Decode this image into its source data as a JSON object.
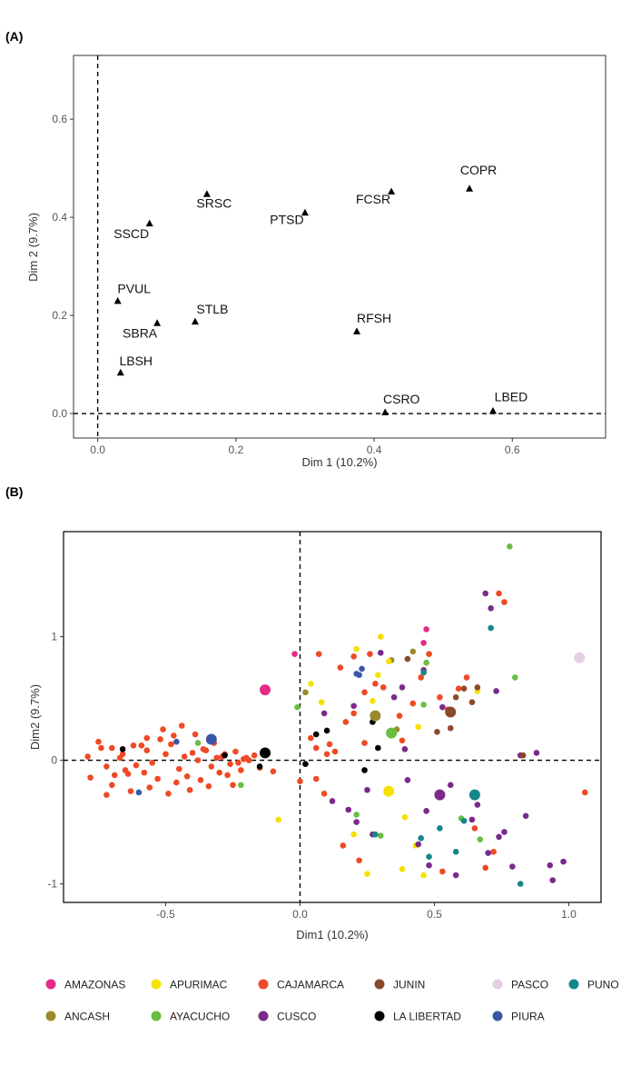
{
  "chart_data": [
    {
      "type": "scatter",
      "panel_label": "(A)",
      "xlabel": "Dim 1 (10.2%)",
      "ylabel": "Dim 2 (9.7%)",
      "xlim": [
        -0.035,
        0.735
      ],
      "ylim": [
        -0.05,
        0.73
      ],
      "xticks": [
        0.0,
        0.2,
        0.4,
        0.6
      ],
      "xtick_labels": [
        "0.0",
        "0.2",
        "0.4",
        "0.6"
      ],
      "yticks": [
        0.0,
        0.2,
        0.4,
        0.6
      ],
      "ytick_labels": [
        "0.0",
        "0.2",
        "0.4",
        "0.6"
      ],
      "reference_lines": {
        "x": 0,
        "y": 0
      },
      "marker": "triangle",
      "points": [
        {
          "label": "COPR",
          "x": 0.538,
          "y": 0.458
        },
        {
          "label": "FCSR",
          "x": 0.425,
          "y": 0.452
        },
        {
          "label": "SRSC",
          "x": 0.158,
          "y": 0.447
        },
        {
          "label": "PTSD",
          "x": 0.3,
          "y": 0.409
        },
        {
          "label": "SSCD",
          "x": 0.075,
          "y": 0.387
        },
        {
          "label": "PVUL",
          "x": 0.029,
          "y": 0.229
        },
        {
          "label": "STLB",
          "x": 0.141,
          "y": 0.187
        },
        {
          "label": "SBRA",
          "x": 0.086,
          "y": 0.184
        },
        {
          "label": "RFSH",
          "x": 0.375,
          "y": 0.167
        },
        {
          "label": "LBSH",
          "x": 0.033,
          "y": 0.083
        },
        {
          "label": "CSRO",
          "x": 0.416,
          "y": 0.002
        },
        {
          "label": "LBED",
          "x": 0.572,
          "y": 0.005
        }
      ]
    },
    {
      "type": "scatter",
      "panel_label": "(B)",
      "xlabel": "Dim1 (10.2%)",
      "ylabel": "Dim2 (9.7%)",
      "xlim": [
        -0.88,
        1.12
      ],
      "ylim": [
        -1.15,
        1.85
      ],
      "xticks": [
        -0.5,
        0.0,
        0.5,
        1.0
      ],
      "xtick_labels": [
        "-0.5",
        "0.0",
        "0.5",
        "1.0"
      ],
      "yticks": [
        -1,
        0,
        1
      ],
      "ytick_labels": [
        "-1",
        "0",
        "1"
      ],
      "reference_lines": {
        "x": 0,
        "y": 0
      },
      "legend_position": "bottom",
      "series": [
        {
          "name": "AMAZONAS",
          "color": "#e7298a",
          "centroid": [
            -0.13,
            0.57
          ],
          "x": [
            0.47,
            0.46,
            -0.02
          ],
          "y": [
            1.06,
            0.95,
            0.86
          ]
        },
        {
          "name": "ANCASH",
          "color": "#9a8a2c",
          "centroid": [
            0.28,
            0.36
          ],
          "x": [
            0.02,
            0.36,
            0.42,
            0.34
          ],
          "y": [
            0.55,
            0.25,
            0.88,
            0.81
          ]
        },
        {
          "name": "APURIMAC",
          "color": "#f5e200",
          "centroid": [
            0.33,
            -0.25
          ],
          "x": [
            0.3,
            0.08,
            0.21,
            0.29,
            0.25,
            0.38,
            0.46,
            0.2,
            0.43,
            0.66,
            0.04,
            -0.08,
            0.33,
            0.39,
            0.27,
            0.44
          ],
          "y": [
            1.0,
            0.47,
            0.9,
            0.69,
            -0.92,
            -0.88,
            -0.93,
            -0.6,
            -0.69,
            0.56,
            0.62,
            -0.48,
            0.8,
            -0.46,
            0.48,
            0.27
          ]
        },
        {
          "name": "AYACUCHO",
          "color": "#6abf40",
          "centroid": [
            0.34,
            0.22
          ],
          "x": [
            0.78,
            0.47,
            -0.22,
            -0.38,
            0.46,
            0.8,
            0.21,
            0.6,
            0.3,
            -0.01,
            0.67
          ],
          "y": [
            1.73,
            0.79,
            -0.2,
            0.14,
            0.45,
            0.67,
            -0.44,
            -0.47,
            -0.61,
            0.43,
            -0.64
          ]
        },
        {
          "name": "CAJAMARCA",
          "color": "#ee4a25",
          "x": [
            -0.79,
            -0.75,
            -0.72,
            -0.7,
            -0.69,
            -0.67,
            -0.65,
            -0.62,
            -0.61,
            -0.58,
            -0.57,
            -0.55,
            -0.53,
            -0.5,
            -0.48,
            -0.45,
            -0.43,
            -0.42,
            -0.4,
            -0.38,
            -0.36,
            -0.33,
            -0.31,
            -0.3,
            -0.28,
            -0.26,
            -0.24,
            -0.23,
            -0.21,
            -0.19,
            -0.78,
            -0.7,
            -0.63,
            -0.56,
            -0.49,
            -0.46,
            -0.41,
            -0.37,
            -0.34,
            -0.27,
            -0.25,
            -0.22,
            -0.2,
            -0.17,
            -0.15,
            -0.1,
            -0.74,
            -0.66,
            -0.59,
            -0.52,
            -0.44,
            -0.39,
            -0.35,
            -0.32,
            -0.29,
            -0.72,
            -0.64,
            -0.57,
            -0.51,
            -0.47,
            0.04,
            0.06,
            0.11,
            0.17,
            0.2,
            0.24,
            0.28,
            0.31,
            0.37,
            0.42,
            0.48,
            0.55,
            0.59,
            0.74,
            0.76,
            1.06,
            0.65,
            0.69,
            0.53,
            0.22,
            0.16,
            0.09,
            0.06,
            0.0,
            0.1,
            0.13,
            0.24,
            0.38,
            0.45,
            0.52,
            0.62,
            0.72,
            0.2,
            0.15,
            0.07,
            0.26
          ],
          "y": [
            0.03,
            0.15,
            -0.05,
            0.1,
            -0.12,
            0.02,
            -0.08,
            0.12,
            -0.04,
            -0.1,
            0.08,
            -0.02,
            -0.15,
            0.05,
            0.13,
            -0.07,
            0.03,
            -0.13,
            0.06,
            0.0,
            0.09,
            -0.05,
            0.02,
            -0.1,
            0.05,
            -0.03,
            0.07,
            -0.02,
            0.01,
            0.0,
            -0.14,
            -0.2,
            -0.25,
            -0.22,
            -0.27,
            -0.18,
            -0.24,
            -0.16,
            -0.21,
            -0.12,
            -0.2,
            -0.08,
            0.02,
            0.04,
            -0.06,
            -0.09,
            0.1,
            0.05,
            0.12,
            0.17,
            0.28,
            0.21,
            0.08,
            0.14,
            0.03,
            -0.28,
            -0.11,
            0.18,
            0.25,
            0.2,
            0.18,
            0.1,
            0.13,
            0.31,
            0.38,
            0.55,
            0.62,
            0.59,
            0.36,
            0.46,
            0.86,
            0.41,
            0.58,
            1.35,
            1.28,
            -0.26,
            -0.55,
            -0.87,
            -0.9,
            -0.81,
            -0.69,
            -0.27,
            -0.15,
            -0.17,
            0.05,
            0.07,
            0.14,
            0.16,
            0.67,
            0.51,
            0.67,
            -0.74,
            0.84,
            0.75,
            0.86,
            0.86
          ]
        },
        {
          "name": "CUSCO",
          "color": "#7b2a8c",
          "centroid": [
            0.52,
            -0.28
          ],
          "x": [
            0.12,
            0.18,
            0.21,
            0.2,
            0.38,
            0.48,
            0.58,
            0.44,
            0.64,
            0.69,
            0.71,
            0.74,
            0.84,
            0.94,
            0.93,
            0.98,
            0.79,
            0.7,
            0.76,
            0.66,
            0.56,
            0.47,
            0.25,
            0.4,
            0.27,
            0.35,
            0.46,
            0.53,
            0.82,
            0.88,
            0.73,
            0.3,
            0.09,
            0.39
          ],
          "y": [
            -0.33,
            -0.4,
            -0.5,
            0.44,
            0.59,
            -0.85,
            -0.93,
            -0.68,
            -0.48,
            1.35,
            1.23,
            -0.62,
            -0.45,
            -0.97,
            -0.85,
            -0.82,
            -0.86,
            -0.75,
            -0.58,
            -0.36,
            -0.2,
            -0.41,
            -0.24,
            -0.16,
            -0.6,
            0.51,
            0.73,
            0.43,
            0.04,
            0.06,
            0.56,
            0.87,
            0.38,
            0.09
          ]
        },
        {
          "name": "JUNIN",
          "color": "#8b4a2a",
          "centroid": [
            0.56,
            0.39
          ],
          "x": [
            0.83,
            0.61,
            0.58,
            0.56,
            0.51,
            0.4,
            0.66,
            0.64
          ],
          "y": [
            0.04,
            0.58,
            0.51,
            0.26,
            0.23,
            0.82,
            0.59,
            0.47
          ]
        },
        {
          "name": "LA LIBERTAD",
          "color": "#000000",
          "centroid": [
            -0.13,
            0.06
          ],
          "x": [
            -0.66,
            -0.28,
            0.27,
            0.29,
            0.1,
            0.24,
            0.02,
            -0.15,
            0.06
          ],
          "y": [
            0.09,
            0.04,
            0.31,
            0.1,
            0.24,
            -0.08,
            -0.03,
            -0.05,
            0.21
          ]
        },
        {
          "name": "PASCO",
          "color": "#e2cfe2",
          "centroid": [
            1.04,
            0.83
          ],
          "x": [],
          "y": []
        },
        {
          "name": "PIURA",
          "color": "#3a56a8",
          "centroid": [
            -0.33,
            0.17
          ],
          "x": [
            -0.6,
            0.21,
            0.23,
            0.22,
            -0.46
          ],
          "y": [
            -0.26,
            0.7,
            0.74,
            0.69,
            0.15
          ]
        },
        {
          "name": "PUNO",
          "color": "#14878a",
          "centroid": [
            0.65,
            -0.28
          ],
          "x": [
            0.46,
            0.71,
            0.82,
            0.58,
            0.48,
            0.52,
            0.45,
            0.61,
            0.28
          ],
          "y": [
            0.71,
            1.07,
            -1.0,
            -0.74,
            -0.78,
            -0.55,
            -0.63,
            -0.49,
            -0.6
          ]
        }
      ]
    }
  ]
}
